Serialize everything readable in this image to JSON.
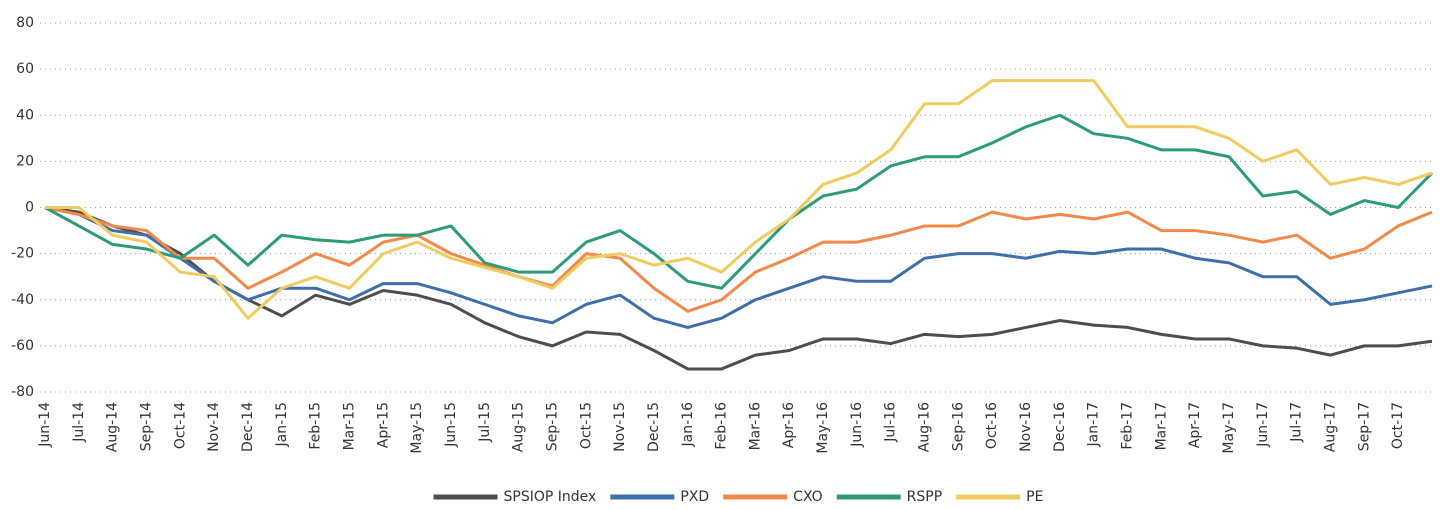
{
  "chart_data": {
    "type": "line",
    "categories": [
      "Jun-14",
      "Jul-14",
      "Aug-14",
      "Sep-14",
      "Oct-14",
      "Nov-14",
      "Dec-14",
      "Jan-15",
      "Feb-15",
      "Mar-15",
      "Apr-15",
      "May-15",
      "Jun-15",
      "Jul-15",
      "Aug-15",
      "Sep-15",
      "Oct-15",
      "Nov-15",
      "Dec-15",
      "Jan-16",
      "Feb-16",
      "Mar-16",
      "Apr-16",
      "May-16",
      "Jun-16",
      "Jul-16",
      "Aug-16",
      "Sep-16",
      "Oct-16",
      "Nov-16",
      "Dec-16",
      "Jan-17",
      "Feb-17",
      "Mar-17",
      "Apr-17",
      "May-17",
      "Jun-17",
      "Jul-17",
      "Aug-17",
      "Sep-17",
      "Oct-17",
      null
    ],
    "series": [
      {
        "name": "SPSIOP Index",
        "color": "#4d4d4d",
        "values": [
          0,
          -2,
          -8,
          -12,
          -20,
          -32,
          -40,
          -47,
          -38,
          -42,
          -36,
          -38,
          -42,
          -50,
          -56,
          -60,
          -54,
          -55,
          -62,
          -70,
          -70,
          -64,
          -62,
          -57,
          -57,
          -59,
          -55,
          -56,
          -55,
          -52,
          -49,
          -51,
          -52,
          -55,
          -57,
          -57,
          -60,
          -61,
          -64,
          -60,
          -60,
          -58
        ]
      },
      {
        "name": "PXD",
        "color": "#3e6fa8",
        "values": [
          0,
          -3,
          -10,
          -12,
          -22,
          -32,
          -40,
          -35,
          -35,
          -40,
          -33,
          -33,
          -37,
          -42,
          -47,
          -50,
          -42,
          -38,
          -48,
          -52,
          -48,
          -40,
          -35,
          -30,
          -32,
          -32,
          -22,
          -20,
          -20,
          -22,
          -19,
          -20,
          -18,
          -18,
          -22,
          -24,
          -30,
          -30,
          -42,
          -40,
          -37,
          -34
        ]
      },
      {
        "name": "CXO",
        "color": "#f0894a",
        "values": [
          0,
          -3,
          -8,
          -10,
          -22,
          -22,
          -35,
          -28,
          -20,
          -25,
          -15,
          -12,
          -20,
          -25,
          -30,
          -34,
          -20,
          -22,
          -35,
          -45,
          -40,
          -28,
          -22,
          -15,
          -15,
          -12,
          -8,
          -8,
          -2,
          -5,
          -3,
          -5,
          -2,
          -10,
          -10,
          -12,
          -15,
          -12,
          -22,
          -18,
          -8,
          -2
        ]
      },
      {
        "name": "RSPP",
        "color": "#2d9b7a",
        "values": [
          0,
          -8,
          -16,
          -18,
          -22,
          -12,
          -25,
          -12,
          -14,
          -15,
          -12,
          -12,
          -8,
          -24,
          -28,
          -28,
          -15,
          -10,
          -20,
          -32,
          -35,
          -20,
          -5,
          5,
          8,
          18,
          22,
          22,
          28,
          35,
          40,
          32,
          30,
          25,
          25,
          22,
          5,
          7,
          -3,
          3,
          0,
          15
        ]
      },
      {
        "name": "PE",
        "color": "#f0cc60",
        "values": [
          0,
          0,
          -12,
          -15,
          -28,
          -30,
          -48,
          -35,
          -30,
          -35,
          -20,
          -15,
          -22,
          -26,
          -30,
          -35,
          -22,
          -20,
          -25,
          -22,
          -28,
          -15,
          -5,
          10,
          15,
          25,
          45,
          45,
          55,
          55,
          55,
          55,
          35,
          35,
          35,
          30,
          20,
          25,
          10,
          13,
          10,
          15
        ]
      }
    ],
    "ylim": [
      -80,
      80
    ],
    "yticks": [
      -80,
      -60,
      -40,
      -20,
      0,
      20,
      40,
      60,
      80
    ],
    "grid": true,
    "legend": "bottom"
  }
}
